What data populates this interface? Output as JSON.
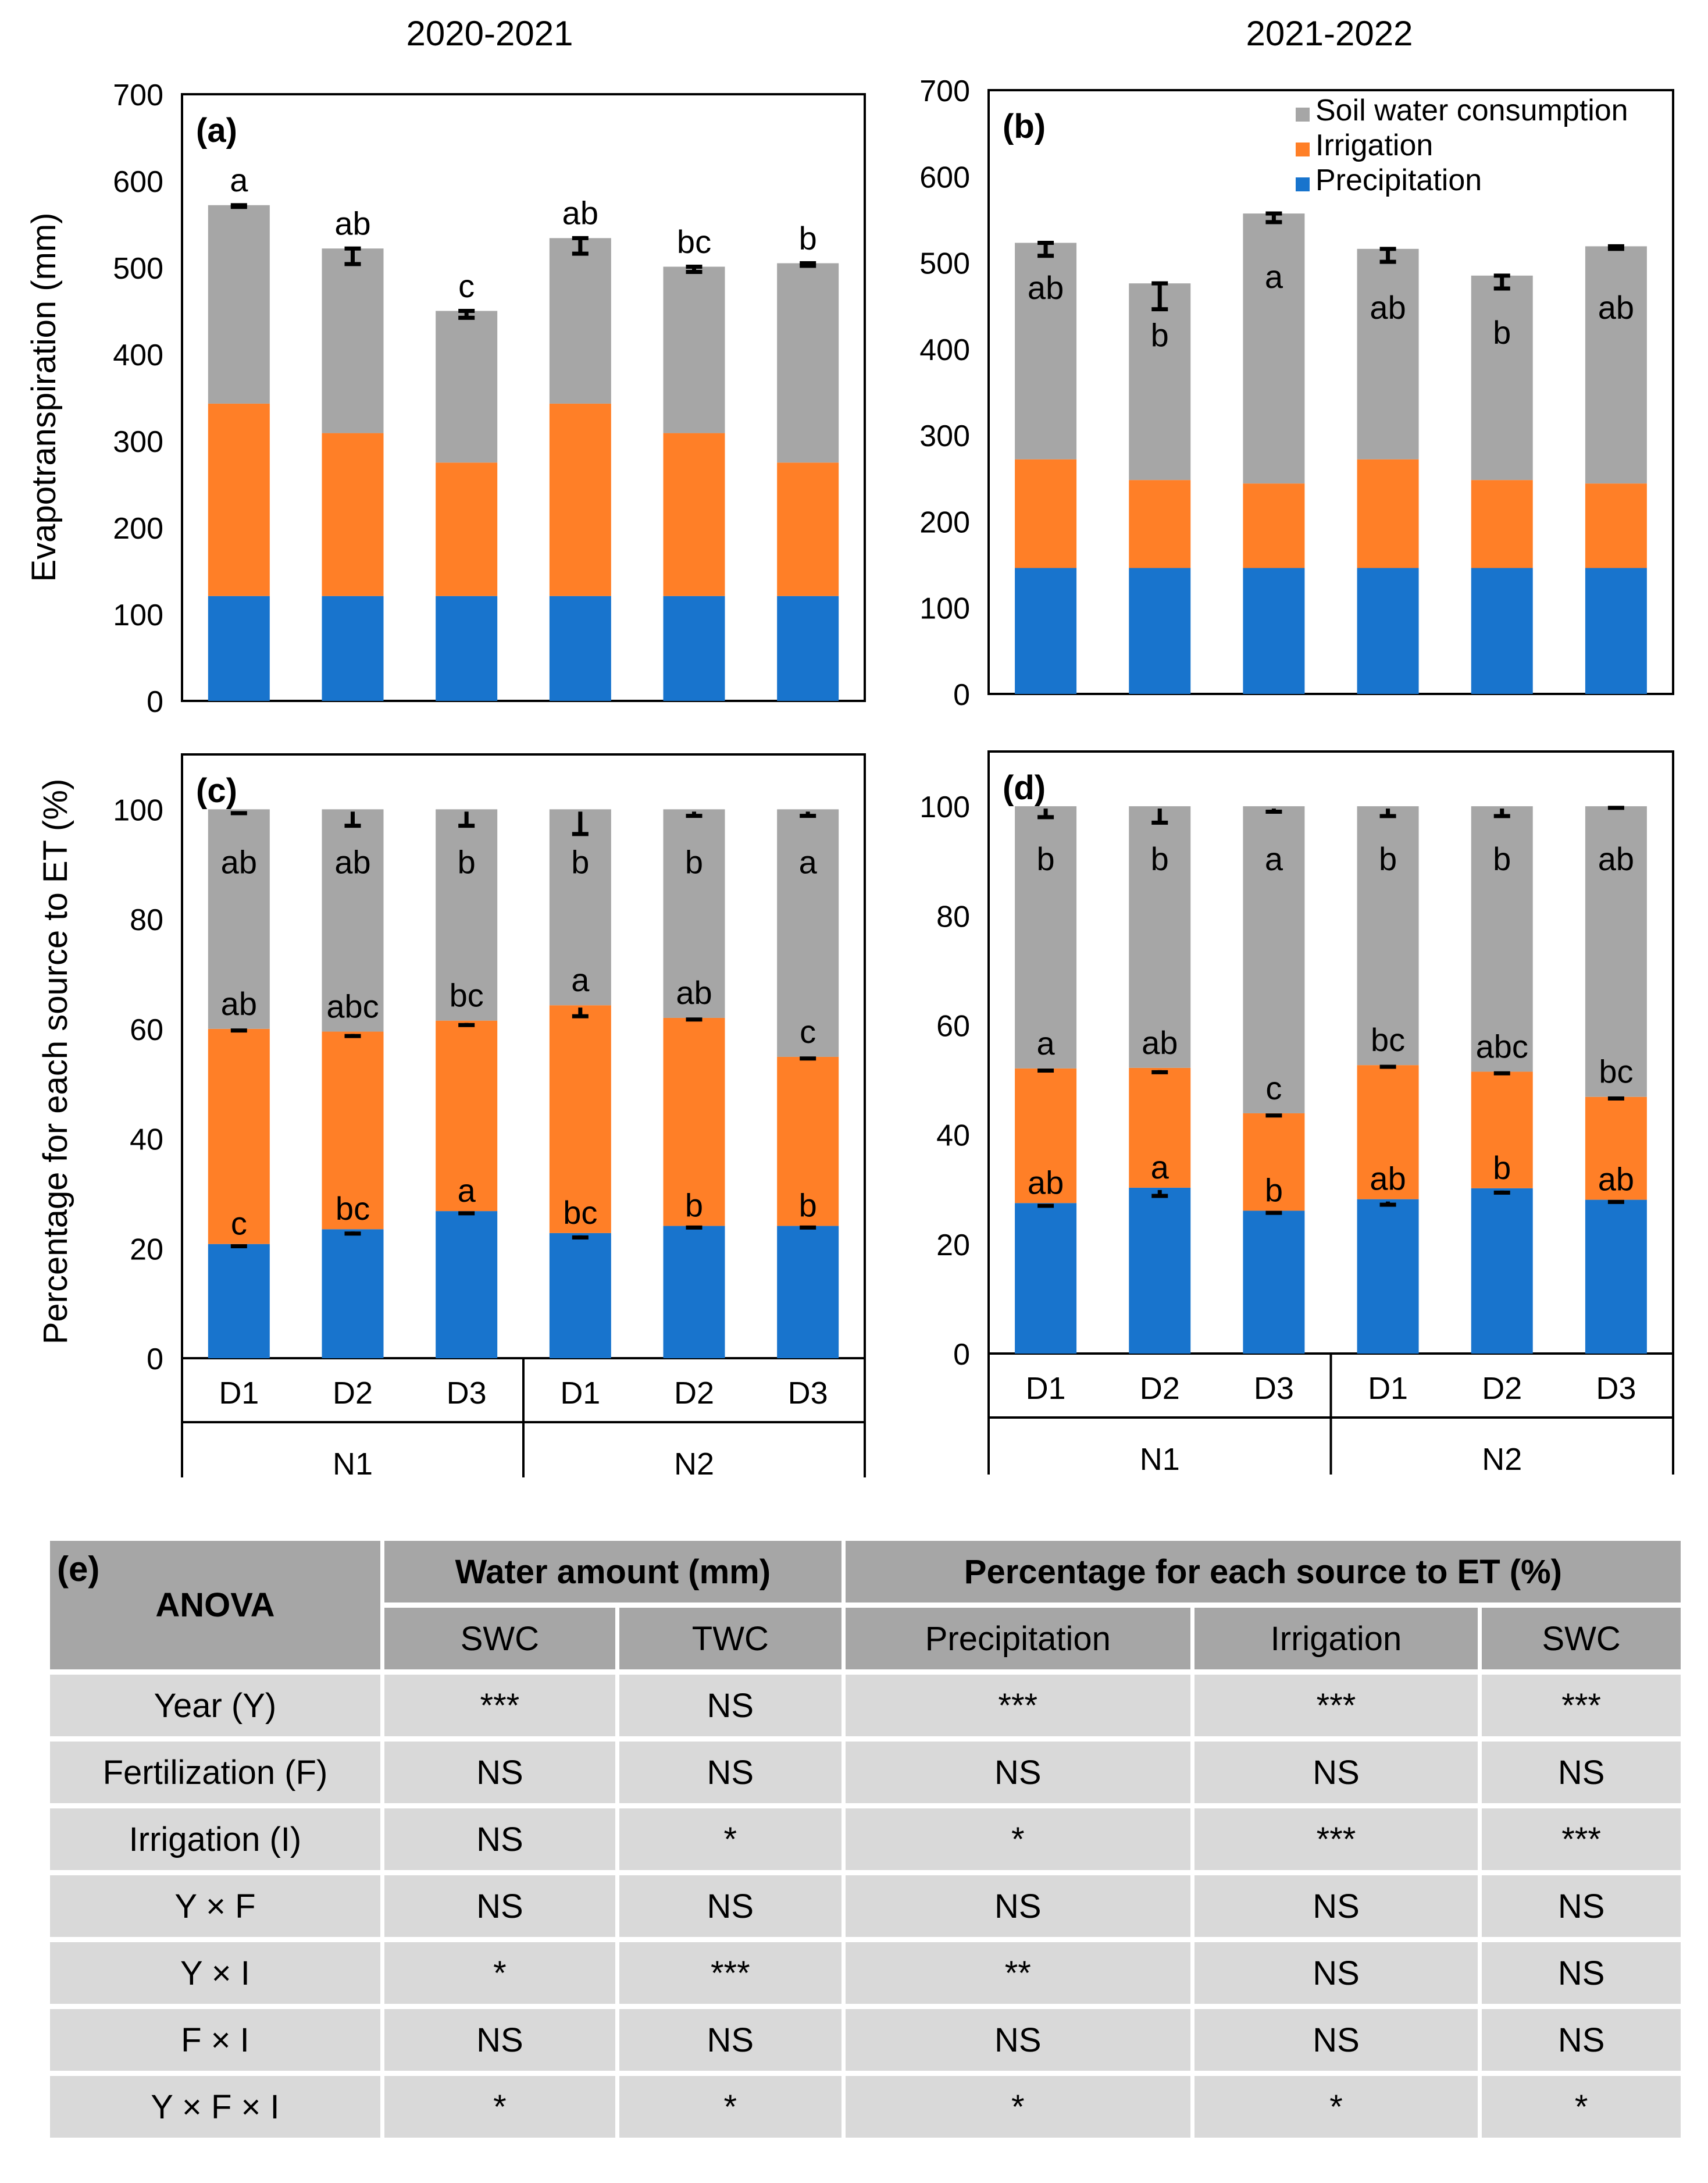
{
  "year_titles": [
    "2020-2021",
    "2021-2022"
  ],
  "y_axis_labels": [
    "Evapotranspiration (mm)",
    "Percentage for each source to ET (%)"
  ],
  "x_labels": [
    "D1",
    "D2",
    "D3",
    "D1",
    "D2",
    "D3"
  ],
  "group_labels": [
    "N1",
    "N2"
  ],
  "colors": {
    "precipitation": "#1874cd",
    "irrigation": "#ff7f27",
    "swc": "#a6a6a6"
  },
  "chart_data": [
    {
      "panel": "(a)",
      "type": "bar",
      "stacked": true,
      "categories": [
        "N1 D1",
        "N1 D2",
        "N1 D3",
        "N2 D1",
        "N2 D2",
        "N2 D3"
      ],
      "ylim": [
        0,
        700
      ],
      "yticks": [
        0,
        100,
        200,
        300,
        400,
        500,
        600,
        700
      ],
      "ylabel": "Evapotranspiration (mm)",
      "series": [
        {
          "name": "Precipitation",
          "values": [
            121,
            121,
            121,
            121,
            121,
            121
          ]
        },
        {
          "name": "Irrigation",
          "values": [
            222,
            188,
            154,
            222,
            188,
            154
          ]
        },
        {
          "name": "Soil water consumption",
          "values": [
            229,
            213,
            175,
            191,
            192,
            230
          ]
        }
      ],
      "errors": [
        2,
        18,
        8,
        18,
        6,
        3
      ],
      "error_position": "top",
      "letters": [
        {
          "text": "a",
          "value": 600
        },
        {
          "text": "ab",
          "value": 550
        },
        {
          "text": "c",
          "value": 478
        },
        {
          "text": "ab",
          "value": 562
        },
        {
          "text": "bc",
          "value": 529
        },
        {
          "text": "b",
          "value": 533
        }
      ]
    },
    {
      "panel": "(b)",
      "type": "bar",
      "stacked": true,
      "categories": [
        "N1 D1",
        "N1 D2",
        "N1 D3",
        "N2 D1",
        "N2 D2",
        "N2 D3"
      ],
      "ylim": [
        0,
        700
      ],
      "yticks": [
        0,
        100,
        200,
        300,
        400,
        500,
        600,
        700
      ],
      "legend": [
        "Soil water consumption",
        "Irrigation",
        "Precipitation"
      ],
      "legend_position": "top-right",
      "series": [
        {
          "name": "Precipitation",
          "values": [
            146,
            146,
            146,
            146,
            146,
            146
          ]
        },
        {
          "name": "Irrigation",
          "values": [
            126,
            102,
            98,
            126,
            102,
            98
          ]
        },
        {
          "name": "Soil water consumption",
          "values": [
            251,
            228,
            313,
            244,
            237,
            275
          ]
        }
      ],
      "errors": [
        15,
        30,
        10,
        15,
        15,
        3
      ],
      "error_position": "top",
      "letters": [
        {
          "text": "ab",
          "value": 470
        },
        {
          "text": "b",
          "value": 415
        },
        {
          "text": "a",
          "value": 483
        },
        {
          "text": "ab",
          "value": 447
        },
        {
          "text": "b",
          "value": 418
        },
        {
          "text": "ab",
          "value": 447
        }
      ]
    },
    {
      "panel": "(c)",
      "type": "bar",
      "stacked": true,
      "categories": [
        "N1 D1",
        "N1 D2",
        "N1 D3",
        "N2 D1",
        "N2 D2",
        "N2 D3"
      ],
      "ylim": [
        0,
        110
      ],
      "yticks": [
        0,
        20,
        40,
        60,
        80,
        100
      ],
      "ylabel": "Percentage for each source to ET (%)",
      "series": [
        {
          "name": "Precipitation",
          "values": [
            20.8,
            23.5,
            26.8,
            22.8,
            24.1,
            24.1
          ]
        },
        {
          "name": "Irrigation",
          "values": [
            39.2,
            36.0,
            34.7,
            41.5,
            37.9,
            30.8
          ]
        },
        {
          "name": "Soil water consumption",
          "values": [
            40.0,
            40.5,
            38.5,
            35.7,
            38.0,
            45.1
          ]
        }
      ],
      "errors_precip": [
        0.4,
        0.8,
        0.4,
        0.8,
        0.3,
        0.3
      ],
      "errors_irrig": [
        0.3,
        0.8,
        0.8,
        2.0,
        0.3,
        0.3
      ],
      "errors_swc": [
        0.7,
        3.0,
        3.0,
        4.5,
        1.2,
        1.2
      ],
      "letters_precip": [
        "c",
        "bc",
        "a",
        "bc",
        "b",
        "b"
      ],
      "letters_irrig": [
        "ab",
        "abc",
        "bc",
        "a",
        "ab",
        "c"
      ],
      "letters_swc": [
        "ab",
        "ab",
        "b",
        "b",
        "b",
        "a"
      ]
    },
    {
      "panel": "(d)",
      "type": "bar",
      "stacked": true,
      "categories": [
        "N1 D1",
        "N1 D2",
        "N1 D3",
        "N2 D1",
        "N2 D2",
        "N2 D3"
      ],
      "ylim": [
        0,
        110
      ],
      "yticks": [
        0,
        20,
        40,
        60,
        80,
        100
      ],
      "series": [
        {
          "name": "Precipitation",
          "values": [
            27.5,
            30.3,
            26.1,
            28.2,
            30.2,
            28.1
          ]
        },
        {
          "name": "Irrigation",
          "values": [
            24.6,
            21.9,
            17.8,
            24.5,
            21.3,
            18.8
          ]
        },
        {
          "name": "Soil water consumption",
          "values": [
            47.9,
            47.8,
            56.1,
            47.3,
            48.5,
            53.1
          ]
        }
      ],
      "errors_precip": [
        0.5,
        1.5,
        0.4,
        1.0,
        0.8,
        0.4
      ],
      "errors_irrig": [
        0.4,
        0.8,
        0.4,
        0.3,
        0.3,
        0.3
      ],
      "errors_swc": [
        2.0,
        3.0,
        1.0,
        1.8,
        1.8,
        0.3
      ],
      "letters_precip": [
        "ab",
        "a",
        "b",
        "ab",
        "b",
        "ab"
      ],
      "letters_irrig": [
        "a",
        "ab",
        "c",
        "bc",
        "abc",
        "bc"
      ],
      "letters_swc": [
        "b",
        "b",
        "a",
        "b",
        "b",
        "ab"
      ]
    },
    {
      "panel": "(e)",
      "type": "table",
      "corner": "ANOVA",
      "group_headers": [
        "Water amount (mm)",
        "Percentage for each source to ET (%)"
      ],
      "columns": [
        "SWC",
        "TWC",
        "Precipitation",
        "Irrigation",
        "SWC"
      ],
      "rows": [
        {
          "factor": "Year (Y)",
          "values": [
            "***",
            "NS",
            "***",
            "***",
            "***"
          ]
        },
        {
          "factor": "Fertilization (F)",
          "values": [
            "NS",
            "NS",
            "NS",
            "NS",
            "NS"
          ]
        },
        {
          "factor": "Irrigation (I)",
          "values": [
            "NS",
            "*",
            "*",
            "***",
            "***"
          ]
        },
        {
          "factor": "Y × F",
          "values": [
            "NS",
            "NS",
            "NS",
            "NS",
            "NS"
          ]
        },
        {
          "factor": "Y × I",
          "values": [
            "*",
            "***",
            "**",
            "NS",
            "NS"
          ]
        },
        {
          "factor": "F × I",
          "values": [
            "NS",
            "NS",
            "NS",
            "NS",
            "NS"
          ]
        },
        {
          "factor": "Y × F × I",
          "values": [
            "*",
            "*",
            "*",
            "*",
            "*"
          ]
        }
      ]
    }
  ]
}
